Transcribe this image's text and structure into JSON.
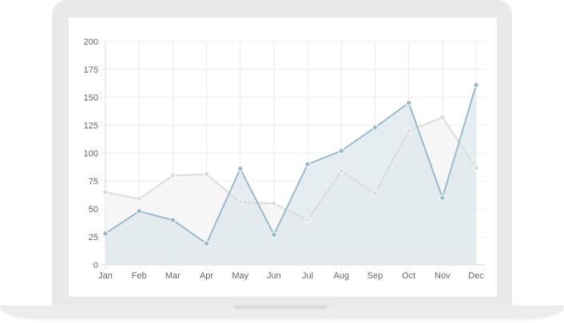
{
  "chart_data": {
    "type": "area",
    "categories": [
      "Jan",
      "Feb",
      "Mar",
      "Apr",
      "May",
      "Jun",
      "Jul",
      "Aug",
      "Sep",
      "Oct",
      "Nov",
      "Dec"
    ],
    "series": [
      {
        "values": [
          65,
          59,
          80,
          81,
          56,
          55,
          40,
          84,
          64,
          120,
          132,
          87
        ],
        "line_color": "#dcdcdc",
        "fill_color": "#f4f4f4",
        "point_color": "#dcdcdc"
      },
      {
        "values": [
          28,
          48,
          40,
          19,
          86,
          27,
          90,
          102,
          123,
          145,
          60,
          161
        ],
        "line_color": "#97bbcd",
        "fill_color": "#dfe8ee",
        "point_color": "#97bbcd"
      }
    ],
    "yticks": [
      "0",
      "25",
      "50",
      "75",
      "100",
      "125",
      "150",
      "175",
      "200"
    ],
    "ylim": [
      0,
      200
    ],
    "grid": true,
    "title": "",
    "xlabel": "",
    "ylabel": ""
  }
}
